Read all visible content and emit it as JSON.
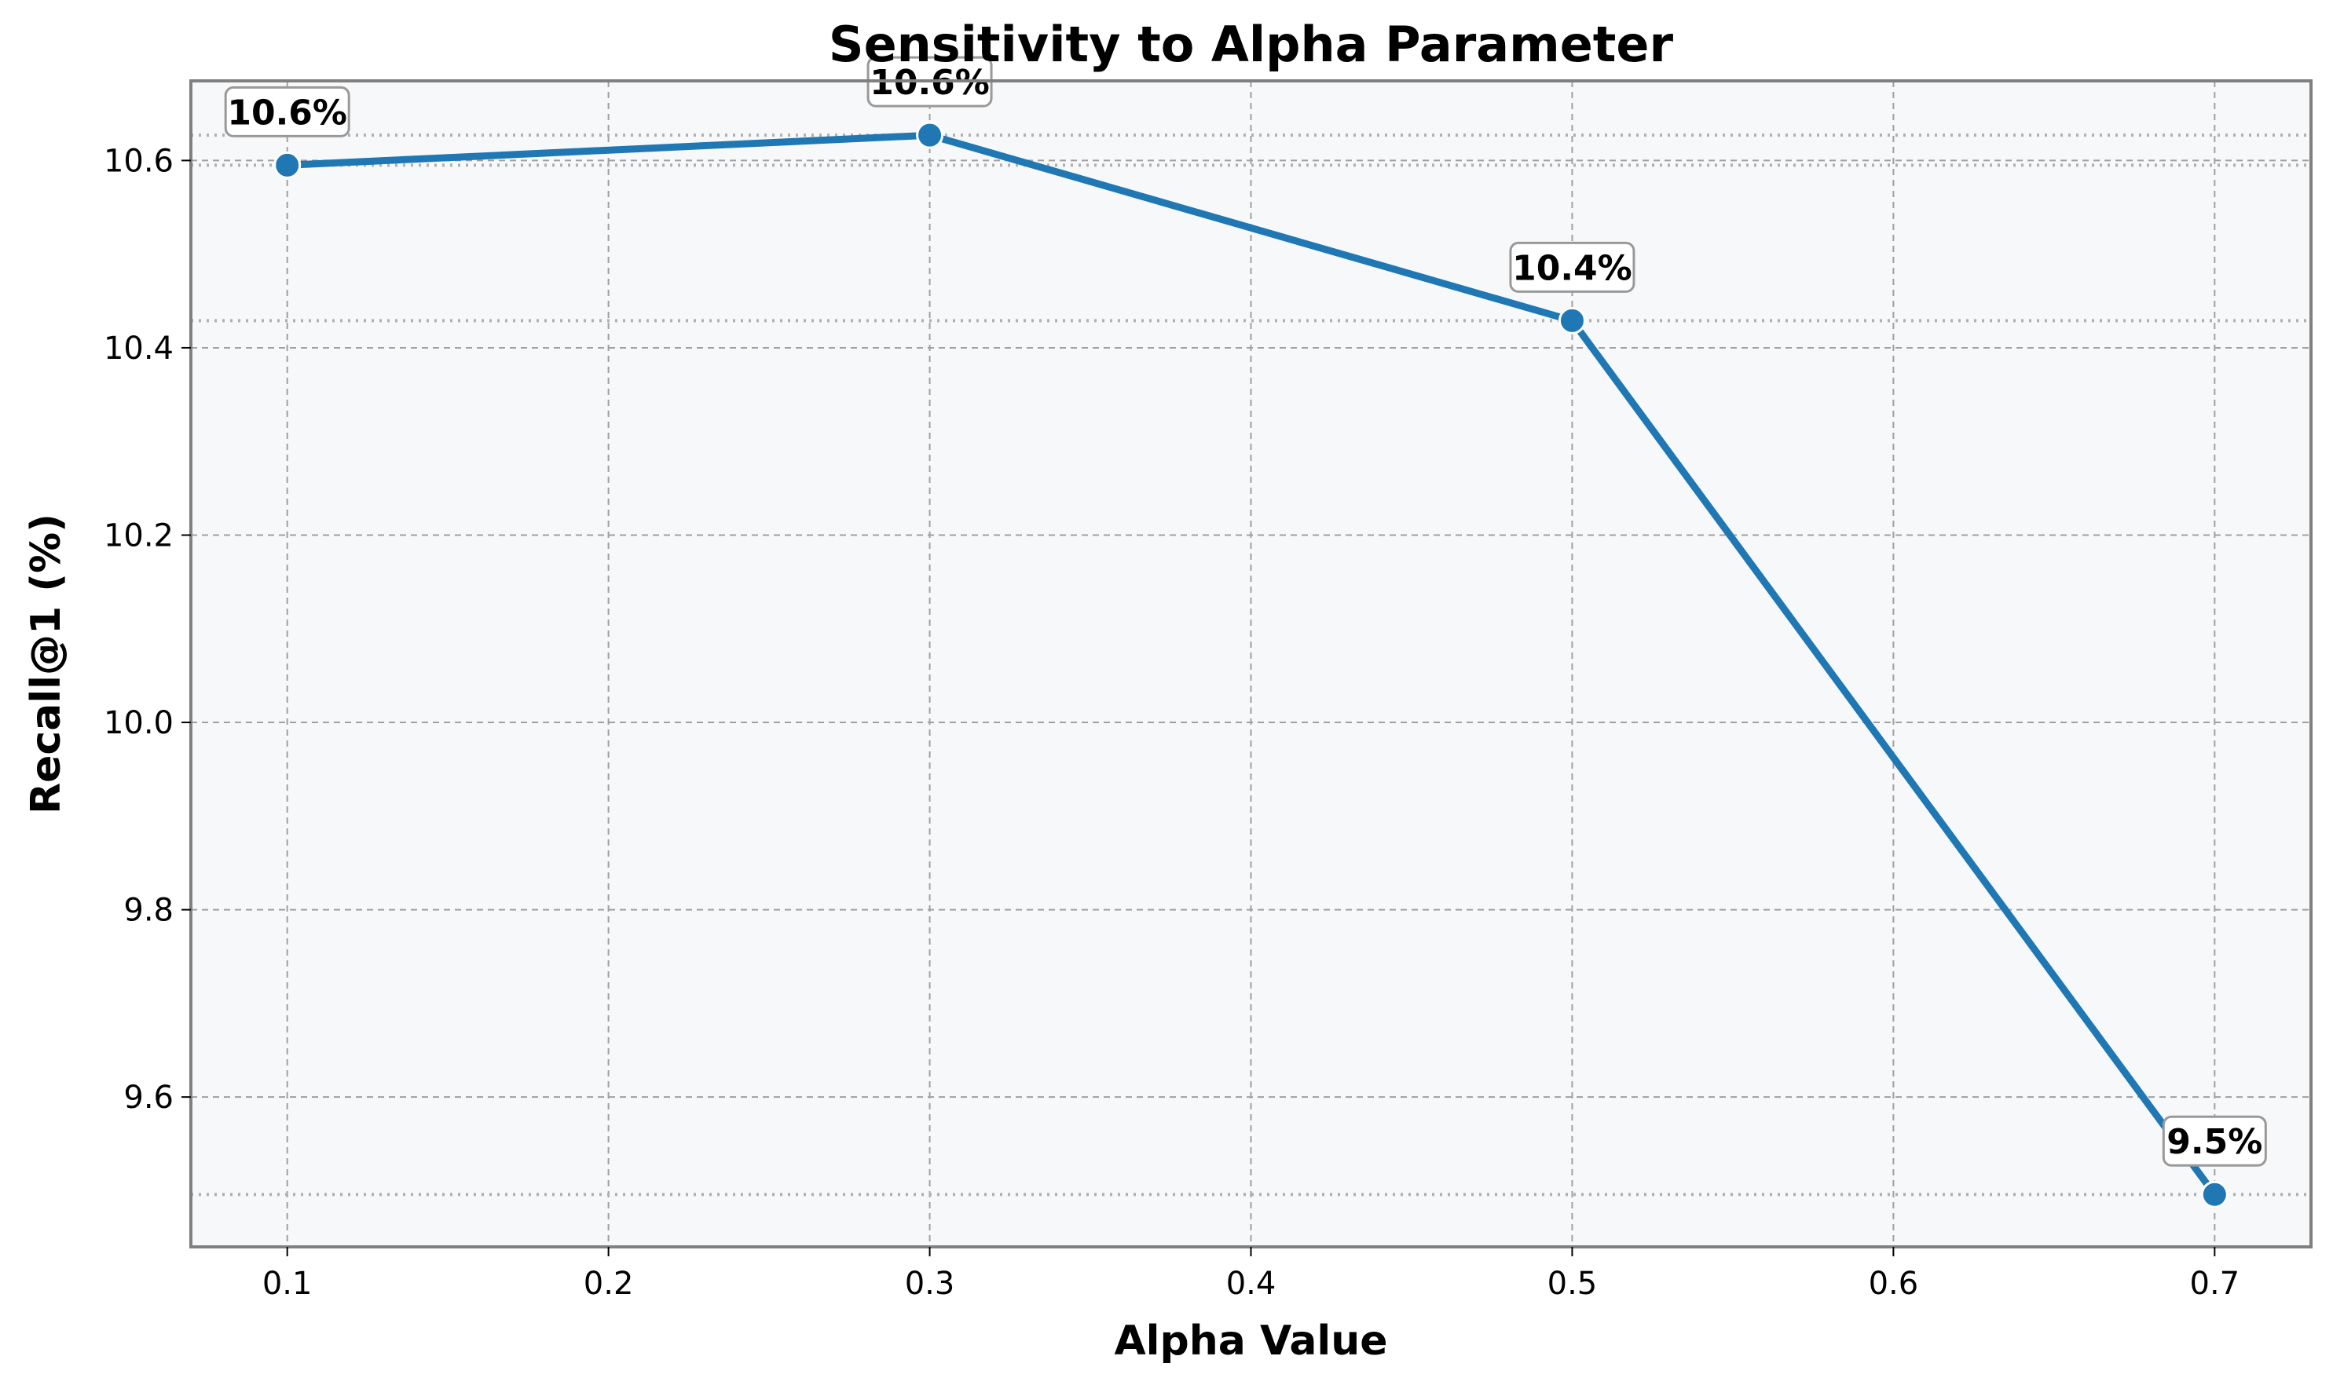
{
  "chart_data": {
    "type": "line",
    "title": "Sensitivity to Alpha Parameter",
    "xlabel": "Alpha Value",
    "ylabel": "Recall@1 (%)",
    "x": [
      0.1,
      0.3,
      0.5,
      0.7
    ],
    "xticks": [
      "0.1",
      "0.2",
      "0.3",
      "0.4",
      "0.5",
      "0.6",
      "0.7"
    ],
    "yticks": [
      "9.6",
      "9.8",
      "10.0",
      "10.2",
      "10.4",
      "10.6"
    ],
    "xlim": [
      0.07,
      0.73
    ],
    "ylim": [
      9.44,
      10.685
    ],
    "grid": true,
    "legend": "none",
    "series": [
      {
        "values": [
          10.595,
          10.627,
          10.429,
          9.496
        ],
        "labels": [
          "10.6%",
          "10.6%",
          "10.4%",
          "9.5%"
        ]
      }
    ],
    "colors": {
      "line": "#1f77b4",
      "plot_background": "#f7f8fa",
      "frame": "#808080",
      "grid": "#a0a0a0",
      "label_box_border": "#999999"
    }
  }
}
